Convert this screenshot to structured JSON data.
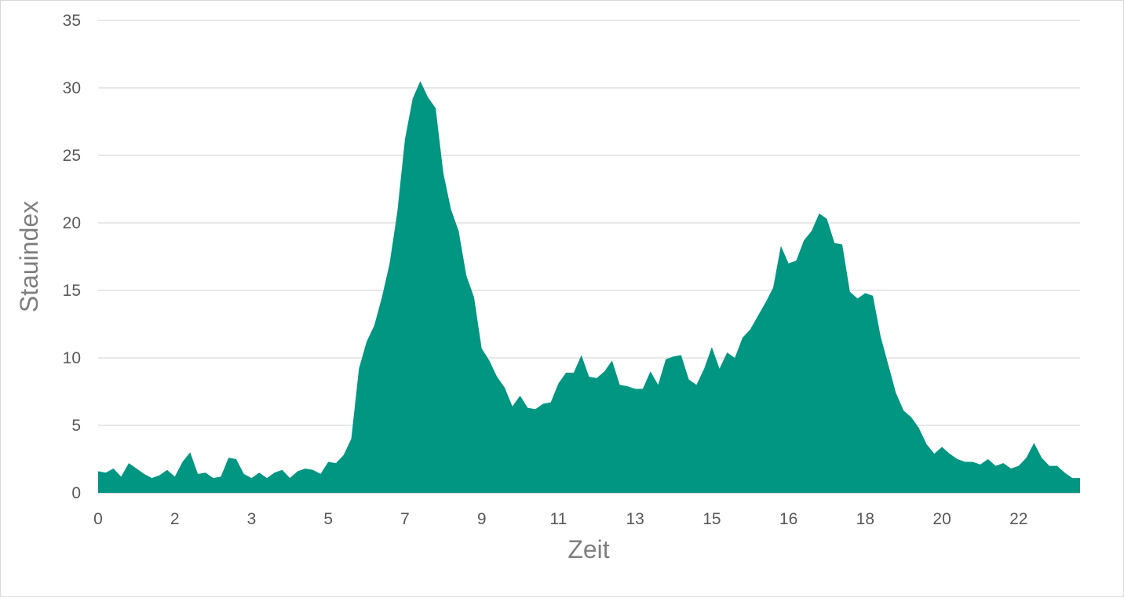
{
  "chart_data": {
    "type": "area",
    "title": "",
    "xlabel": "Zeit",
    "ylabel": "Stauindex",
    "ylim": [
      0,
      35
    ],
    "yticks": [
      0,
      5,
      10,
      15,
      20,
      25,
      30,
      35
    ],
    "x_tick_labels": [
      "0",
      "2",
      "3",
      "5",
      "7",
      "9",
      "11",
      "13",
      "15",
      "16",
      "18",
      "20",
      "22"
    ],
    "x_tick_every_n_points": 10,
    "grid": true,
    "legend": "none",
    "series": [
      {
        "name": "Stauindex",
        "color": "#009682",
        "values": [
          1.6,
          1.5,
          1.8,
          1.2,
          2.2,
          1.8,
          1.4,
          1.1,
          1.3,
          1.7,
          1.2,
          2.3,
          3.0,
          1.4,
          1.5,
          1.1,
          1.2,
          2.6,
          2.5,
          1.4,
          1.1,
          1.5,
          1.1,
          1.5,
          1.7,
          1.1,
          1.6,
          1.8,
          1.7,
          1.4,
          2.3,
          2.2,
          2.8,
          4.0,
          9.2,
          11.2,
          12.4,
          14.5,
          17.0,
          20.8,
          26.2,
          29.2,
          30.5,
          29.3,
          28.5,
          23.7,
          21.0,
          19.4,
          16.1,
          14.5,
          10.7,
          9.8,
          8.6,
          7.8,
          6.4,
          7.2,
          6.3,
          6.2,
          6.6,
          6.7,
          8.1,
          8.9,
          8.9,
          10.2,
          8.6,
          8.5,
          9.0,
          9.8,
          8.0,
          7.9,
          7.7,
          7.7,
          9.0,
          8.0,
          9.9,
          10.1,
          10.2,
          8.4,
          8.0,
          9.2,
          10.8,
          9.2,
          10.4,
          10.0,
          11.5,
          12.1,
          13.1,
          14.1,
          15.2,
          18.3,
          17.0,
          17.2,
          18.7,
          19.4,
          20.7,
          20.3,
          18.5,
          18.4,
          14.9,
          14.4,
          14.8,
          14.6,
          11.6,
          9.5,
          7.4,
          6.1,
          5.6,
          4.8,
          3.6,
          2.9,
          3.4,
          2.9,
          2.5,
          2.3,
          2.3,
          2.1,
          2.5,
          2.0,
          2.2,
          1.8,
          2.0,
          2.6,
          3.7,
          2.6,
          2.0,
          2.0,
          1.5,
          1.1,
          1.1
        ]
      }
    ]
  }
}
